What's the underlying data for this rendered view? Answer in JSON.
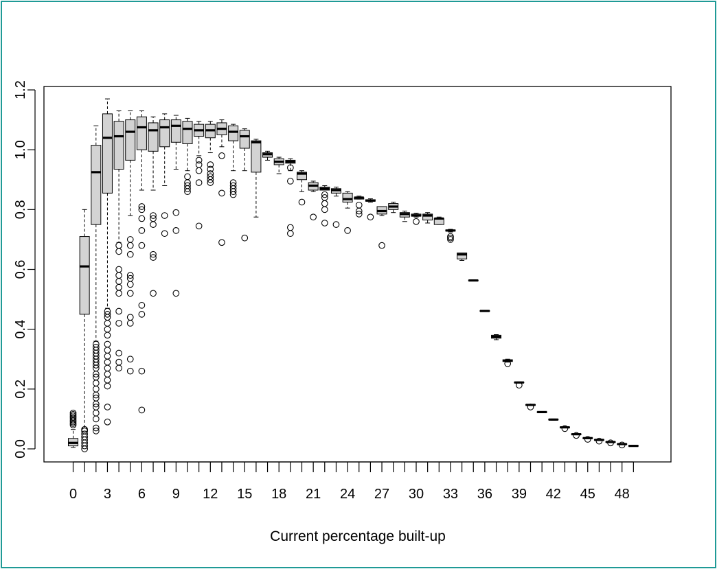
{
  "chart_data": {
    "type": "boxplot",
    "title": "",
    "xlabel": "Current percentage built-up",
    "ylabel": "",
    "ylim": [
      0,
      1.2
    ],
    "y_ticks": [
      "0.0",
      "0.2",
      "0.4",
      "0.6",
      "0.8",
      "1.0",
      "1.2"
    ],
    "x_ticks": [
      "0",
      "3",
      "6",
      "9",
      "12",
      "15",
      "18",
      "21",
      "24",
      "27",
      "30",
      "33",
      "36",
      "39",
      "42",
      "45",
      "48"
    ],
    "grid": false,
    "legend": "none",
    "box_fill": "#d3d3d3",
    "categories": [
      0,
      1,
      2,
      3,
      4,
      5,
      6,
      7,
      8,
      9,
      10,
      11,
      12,
      13,
      14,
      15,
      16,
      17,
      18,
      19,
      20,
      21,
      22,
      23,
      24,
      25,
      26,
      27,
      28,
      29,
      30,
      31,
      32,
      33,
      34,
      35,
      36,
      37,
      38,
      39,
      40,
      41,
      42,
      43,
      44,
      45,
      46,
      47,
      48,
      49
    ],
    "boxes": [
      {
        "x": 0,
        "whisker_low": 0.005,
        "q1": 0.01,
        "median": 0.02,
        "q3": 0.035,
        "whisker_high": 0.065,
        "outliers": [
          0.08,
          0.085,
          0.09,
          0.095,
          0.1,
          0.105,
          0.11,
          0.115,
          0.12
        ]
      },
      {
        "x": 1,
        "whisker_low": 0.07,
        "q1": 0.45,
        "median": 0.61,
        "q3": 0.71,
        "whisker_high": 0.8,
        "outliers": [
          0.0,
          0.01,
          0.02,
          0.03,
          0.04,
          0.05,
          0.06,
          0.065
        ]
      },
      {
        "x": 2,
        "whisker_low": 0.36,
        "q1": 0.75,
        "median": 0.925,
        "q3": 1.015,
        "whisker_high": 1.08,
        "outliers": [
          0.06,
          0.07,
          0.1,
          0.12,
          0.14,
          0.15,
          0.17,
          0.18,
          0.2,
          0.22,
          0.24,
          0.25,
          0.27,
          0.28,
          0.29,
          0.3,
          0.31,
          0.32,
          0.33,
          0.34,
          0.35
        ]
      },
      {
        "x": 3,
        "whisker_low": 0.47,
        "q1": 0.855,
        "median": 1.04,
        "q3": 1.12,
        "whisker_high": 1.17,
        "outliers": [
          0.09,
          0.14,
          0.21,
          0.23,
          0.25,
          0.27,
          0.29,
          0.31,
          0.33,
          0.35,
          0.38,
          0.4,
          0.42,
          0.44,
          0.45,
          0.46
        ]
      },
      {
        "x": 4,
        "whisker_low": 0.69,
        "q1": 0.935,
        "median": 1.045,
        "q3": 1.095,
        "whisker_high": 1.13,
        "outliers": [
          0.27,
          0.29,
          0.32,
          0.42,
          0.46,
          0.52,
          0.54,
          0.56,
          0.58,
          0.6,
          0.66,
          0.68
        ]
      },
      {
        "x": 5,
        "whisker_low": 0.78,
        "q1": 0.965,
        "median": 1.06,
        "q3": 1.1,
        "whisker_high": 1.13,
        "outliers": [
          0.26,
          0.3,
          0.42,
          0.44,
          0.52,
          0.55,
          0.57,
          0.58,
          0.65,
          0.68,
          0.7
        ]
      },
      {
        "x": 6,
        "whisker_low": 0.865,
        "q1": 1.0,
        "median": 1.075,
        "q3": 1.11,
        "whisker_high": 1.13,
        "outliers": [
          0.13,
          0.26,
          0.45,
          0.48,
          0.68,
          0.73,
          0.77,
          0.8,
          0.81
        ]
      },
      {
        "x": 7,
        "whisker_low": 0.865,
        "q1": 0.995,
        "median": 1.065,
        "q3": 1.09,
        "whisker_high": 1.11,
        "outliers": [
          0.52,
          0.64,
          0.65,
          0.75,
          0.77,
          0.78
        ]
      },
      {
        "x": 8,
        "whisker_low": 0.88,
        "q1": 1.01,
        "median": 1.075,
        "q3": 1.1,
        "whisker_high": 1.12,
        "outliers": [
          0.72,
          0.78
        ]
      },
      {
        "x": 9,
        "whisker_low": 0.935,
        "q1": 1.025,
        "median": 1.08,
        "q3": 1.1,
        "whisker_high": 1.115,
        "outliers": [
          0.52,
          0.73,
          0.79
        ]
      },
      {
        "x": 10,
        "whisker_low": 0.93,
        "q1": 1.02,
        "median": 1.07,
        "q3": 1.095,
        "whisker_high": 1.105,
        "outliers": [
          0.86,
          0.87,
          0.88,
          0.89,
          0.91
        ]
      },
      {
        "x": 11,
        "whisker_low": 0.98,
        "q1": 1.045,
        "median": 1.065,
        "q3": 1.085,
        "whisker_high": 1.095,
        "outliers": [
          0.745,
          0.89,
          0.93,
          0.95,
          0.965
        ]
      },
      {
        "x": 12,
        "whisker_low": 0.99,
        "q1": 1.04,
        "median": 1.065,
        "q3": 1.085,
        "whisker_high": 1.095,
        "outliers": [
          0.89,
          0.9,
          0.91,
          0.92,
          0.935,
          0.95
        ]
      },
      {
        "x": 13,
        "whisker_low": 1.01,
        "q1": 1.05,
        "median": 1.07,
        "q3": 1.09,
        "whisker_high": 1.1,
        "outliers": [
          0.69,
          0.855,
          0.98
        ]
      },
      {
        "x": 14,
        "whisker_low": 0.93,
        "q1": 1.03,
        "median": 1.06,
        "q3": 1.08,
        "whisker_high": 1.085,
        "outliers": [
          0.85,
          0.86,
          0.87,
          0.88,
          0.89
        ]
      },
      {
        "x": 15,
        "whisker_low": 0.93,
        "q1": 1.005,
        "median": 1.045,
        "q3": 1.065,
        "whisker_high": 1.07,
        "outliers": [
          0.705
        ]
      },
      {
        "x": 16,
        "whisker_low": 0.775,
        "q1": 0.925,
        "median": 1.025,
        "q3": 1.03,
        "whisker_high": 1.035,
        "outliers": []
      },
      {
        "x": 17,
        "whisker_low": 0.965,
        "q1": 0.975,
        "median": 0.985,
        "q3": 0.99,
        "whisker_high": 0.995,
        "outliers": []
      },
      {
        "x": 18,
        "whisker_low": 0.92,
        "q1": 0.95,
        "median": 0.96,
        "q3": 0.97,
        "whisker_high": 0.975,
        "outliers": []
      },
      {
        "x": 19,
        "whisker_low": 0.93,
        "q1": 0.955,
        "median": 0.96,
        "q3": 0.965,
        "whisker_high": 0.97,
        "outliers": [
          0.72,
          0.74,
          0.895,
          0.94
        ]
      },
      {
        "x": 20,
        "whisker_low": 0.86,
        "q1": 0.9,
        "median": 0.92,
        "q3": 0.925,
        "whisker_high": 0.93,
        "outliers": [
          0.825
        ]
      },
      {
        "x": 21,
        "whisker_low": 0.86,
        "q1": 0.865,
        "median": 0.88,
        "q3": 0.89,
        "whisker_high": 0.895,
        "outliers": [
          0.775
        ]
      },
      {
        "x": 22,
        "whisker_low": 0.865,
        "q1": 0.865,
        "median": 0.87,
        "q3": 0.875,
        "whisker_high": 0.88,
        "outliers": [
          0.755,
          0.8,
          0.82,
          0.84,
          0.85
        ]
      },
      {
        "x": 23,
        "whisker_low": 0.845,
        "q1": 0.855,
        "median": 0.865,
        "q3": 0.87,
        "whisker_high": 0.875,
        "outliers": [
          0.75
        ]
      },
      {
        "x": 24,
        "whisker_low": 0.805,
        "q1": 0.825,
        "median": 0.835,
        "q3": 0.855,
        "whisker_high": 0.86,
        "outliers": [
          0.73
        ]
      },
      {
        "x": 25,
        "whisker_low": 0.835,
        "q1": 0.835,
        "median": 0.84,
        "q3": 0.84,
        "whisker_high": 0.845,
        "outliers": [
          0.785,
          0.795,
          0.815
        ]
      },
      {
        "x": 26,
        "whisker_low": 0.825,
        "q1": 0.828,
        "median": 0.83,
        "q3": 0.833,
        "whisker_high": 0.836,
        "outliers": [
          0.775
        ]
      },
      {
        "x": 27,
        "whisker_low": 0.78,
        "q1": 0.785,
        "median": 0.795,
        "q3": 0.81,
        "whisker_high": 0.81,
        "outliers": [
          0.68
        ]
      },
      {
        "x": 28,
        "whisker_low": 0.79,
        "q1": 0.8,
        "median": 0.81,
        "q3": 0.82,
        "whisker_high": 0.825,
        "outliers": []
      },
      {
        "x": 29,
        "whisker_low": 0.76,
        "q1": 0.775,
        "median": 0.785,
        "q3": 0.79,
        "whisker_high": 0.795,
        "outliers": []
      },
      {
        "x": 30,
        "whisker_low": 0.775,
        "q1": 0.778,
        "median": 0.78,
        "q3": 0.785,
        "whisker_high": 0.788,
        "outliers": [
          0.76
        ]
      },
      {
        "x": 31,
        "whisker_low": 0.755,
        "q1": 0.765,
        "median": 0.78,
        "q3": 0.785,
        "whisker_high": 0.79,
        "outliers": []
      },
      {
        "x": 32,
        "whisker_low": 0.75,
        "q1": 0.75,
        "median": 0.77,
        "q3": 0.77,
        "whisker_high": 0.775,
        "outliers": []
      },
      {
        "x": 33,
        "whisker_low": 0.725,
        "q1": 0.728,
        "median": 0.73,
        "q3": 0.732,
        "whisker_high": 0.734,
        "outliers": [
          0.7,
          0.705,
          0.71
        ]
      },
      {
        "x": 34,
        "whisker_low": 0.63,
        "q1": 0.635,
        "median": 0.65,
        "q3": 0.655,
        "whisker_high": 0.655,
        "outliers": []
      },
      {
        "x": 35,
        "whisker_low": 0.561,
        "q1": 0.562,
        "median": 0.563,
        "q3": 0.564,
        "whisker_high": 0.565,
        "outliers": []
      },
      {
        "x": 36,
        "whisker_low": 0.459,
        "q1": 0.46,
        "median": 0.461,
        "q3": 0.462,
        "whisker_high": 0.463,
        "outliers": []
      },
      {
        "x": 37,
        "whisker_low": 0.365,
        "q1": 0.37,
        "median": 0.375,
        "q3": 0.38,
        "whisker_high": 0.382,
        "outliers": []
      },
      {
        "x": 38,
        "whisker_low": 0.29,
        "q1": 0.292,
        "median": 0.295,
        "q3": 0.298,
        "whisker_high": 0.3,
        "outliers": [
          0.285
        ]
      },
      {
        "x": 39,
        "whisker_low": 0.22,
        "q1": 0.221,
        "median": 0.222,
        "q3": 0.223,
        "whisker_high": 0.224,
        "outliers": [
          0.213
        ]
      },
      {
        "x": 40,
        "whisker_low": 0.145,
        "q1": 0.146,
        "median": 0.147,
        "q3": 0.148,
        "whisker_high": 0.149,
        "outliers": [
          0.14
        ]
      },
      {
        "x": 41,
        "whisker_low": 0.121,
        "q1": 0.122,
        "median": 0.123,
        "q3": 0.124,
        "whisker_high": 0.125,
        "outliers": []
      },
      {
        "x": 42,
        "whisker_low": 0.096,
        "q1": 0.097,
        "median": 0.098,
        "q3": 0.099,
        "whisker_high": 0.1,
        "outliers": []
      },
      {
        "x": 43,
        "whisker_low": 0.07,
        "q1": 0.071,
        "median": 0.072,
        "q3": 0.073,
        "whisker_high": 0.074,
        "outliers": [
          0.068
        ]
      },
      {
        "x": 44,
        "whisker_low": 0.047,
        "q1": 0.048,
        "median": 0.049,
        "q3": 0.05,
        "whisker_high": 0.051,
        "outliers": [
          0.045
        ]
      },
      {
        "x": 45,
        "whisker_low": 0.034,
        "q1": 0.035,
        "median": 0.036,
        "q3": 0.037,
        "whisker_high": 0.038,
        "outliers": [
          0.032
        ]
      },
      {
        "x": 46,
        "whisker_low": 0.028,
        "q1": 0.029,
        "median": 0.03,
        "q3": 0.031,
        "whisker_high": 0.032,
        "outliers": [
          0.026
        ]
      },
      {
        "x": 47,
        "whisker_low": 0.021,
        "q1": 0.022,
        "median": 0.023,
        "q3": 0.024,
        "whisker_high": 0.025,
        "outliers": [
          0.02
        ]
      },
      {
        "x": 48,
        "whisker_low": 0.014,
        "q1": 0.015,
        "median": 0.016,
        "q3": 0.017,
        "whisker_high": 0.018,
        "outliers": [
          0.013
        ]
      },
      {
        "x": 49,
        "whisker_low": 0.008,
        "q1": 0.009,
        "median": 0.01,
        "q3": 0.011,
        "whisker_high": 0.012,
        "outliers": []
      }
    ]
  }
}
